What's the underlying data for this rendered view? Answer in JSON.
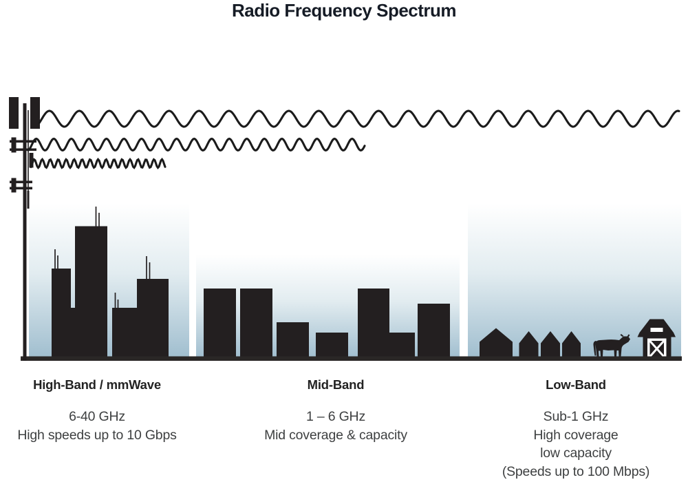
{
  "title": "Radio Frequency Spectrum",
  "bands": [
    {
      "name": "High-Band / mmWave",
      "frequency": "6-40 GHz",
      "details": [
        "High speeds up to 10 Gbps"
      ]
    },
    {
      "name": "Mid-Band",
      "frequency": "1 – 6 GHz",
      "details": [
        "Mid coverage & capacity"
      ]
    },
    {
      "name": "Low-Band",
      "frequency": "Sub-1 GHz",
      "details": [
        "High coverage",
        "low capacity",
        "(Speeds up to 100 Mbps)"
      ]
    }
  ],
  "colors": {
    "ink": "#231f20",
    "wave_stroke": "#1b1b1b",
    "sky_top": "#ffffff",
    "sky_bottom": "#a0becf",
    "baseline": "#2a2726",
    "title_text": "#161c26",
    "heading_text": "#232323",
    "body_text": "#3e4041"
  },
  "graphics": {
    "tower": "cell-tower-icon",
    "waves": [
      "long-wavelength-wave",
      "medium-wavelength-wave",
      "short-wavelength-wave"
    ],
    "scenes": {
      "high_band": "city-skyline-with-rooftop-antennas",
      "mid_band": "mid-rise-building-skyline",
      "low_band": "rural-scene-houses-cow-barn"
    }
  }
}
